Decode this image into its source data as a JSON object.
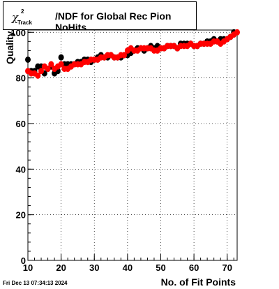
{
  "header": {
    "chi_symbol": "χ",
    "chi_superscript": "2",
    "chi_subscript": "Track",
    "title_rest": "/NDF for Global Rec Pion NoHits"
  },
  "footer": {
    "timestamp": "Fri Dec 13 07:34:13 2024"
  },
  "colors": {
    "series_black": "#000000",
    "series_red": "#ff0000"
  },
  "chart_data": {
    "type": "scatter",
    "title": "χ²Track/NDF for Global Rec Pion NoHits",
    "xlabel": "No. of Fit Points",
    "ylabel": "Quality",
    "xlim": [
      10,
      73
    ],
    "ylim": [
      0,
      101
    ],
    "xticks": [
      "10",
      "20",
      "30",
      "40",
      "50",
      "60",
      "70"
    ],
    "yticks": [
      "0",
      "20",
      "40",
      "60",
      "80",
      "100"
    ],
    "grid": true,
    "series": [
      {
        "color": "#000000",
        "x": [
          10,
          11,
          12,
          13,
          14,
          15,
          16,
          17,
          18,
          19,
          20,
          21,
          22,
          23,
          24,
          25,
          26,
          27,
          28,
          29,
          30,
          31,
          32,
          33,
          34,
          35,
          36,
          37,
          38,
          39,
          40,
          41,
          42,
          43,
          44,
          45,
          46,
          47,
          48,
          49,
          50,
          51,
          52,
          53,
          54,
          55,
          56,
          57,
          58,
          59,
          60,
          61,
          62,
          63,
          64,
          65,
          66,
          67,
          68,
          69,
          70,
          71,
          72
        ],
        "y": [
          88,
          83,
          83,
          85,
          85,
          82,
          84,
          85,
          82,
          83,
          89,
          86,
          86,
          86,
          86,
          87,
          87,
          88,
          88,
          87,
          88,
          89,
          90,
          89,
          89,
          90,
          89,
          89,
          89,
          90,
          90,
          91,
          92,
          93,
          93,
          92,
          93,
          94,
          93,
          94,
          93,
          93,
          94,
          94,
          94,
          93,
          95,
          95,
          95,
          95,
          94,
          94,
          95,
          95,
          96,
          96,
          97,
          96,
          97,
          97,
          97,
          98,
          100
        ]
      },
      {
        "color": "#ff0000",
        "x": [
          10,
          11,
          12,
          13,
          14,
          15,
          16,
          17,
          18,
          19,
          20,
          21,
          22,
          23,
          24,
          25,
          26,
          27,
          28,
          29,
          30,
          31,
          32,
          33,
          34,
          35,
          36,
          37,
          38,
          39,
          40,
          41,
          42,
          43,
          44,
          45,
          46,
          47,
          48,
          49,
          50,
          51,
          52,
          53,
          54,
          55,
          56,
          57,
          58,
          59,
          60,
          61,
          62,
          63,
          64,
          65,
          66,
          67,
          68,
          69,
          70,
          71,
          72,
          73
        ],
        "y": [
          83,
          82,
          82,
          81,
          83,
          85,
          84,
          86,
          84,
          85,
          86,
          84,
          84,
          85,
          86,
          86,
          86,
          87,
          87,
          88,
          88,
          88,
          89,
          89,
          90,
          90,
          89,
          89,
          90,
          90,
          92,
          93,
          92,
          92,
          93,
          93,
          93,
          93,
          92,
          92,
          93,
          93,
          94,
          94,
          94,
          93,
          94,
          94,
          94,
          95,
          94,
          94,
          95,
          95,
          95,
          95,
          96,
          96,
          95,
          96,
          97,
          98,
          99,
          100
        ]
      }
    ]
  }
}
